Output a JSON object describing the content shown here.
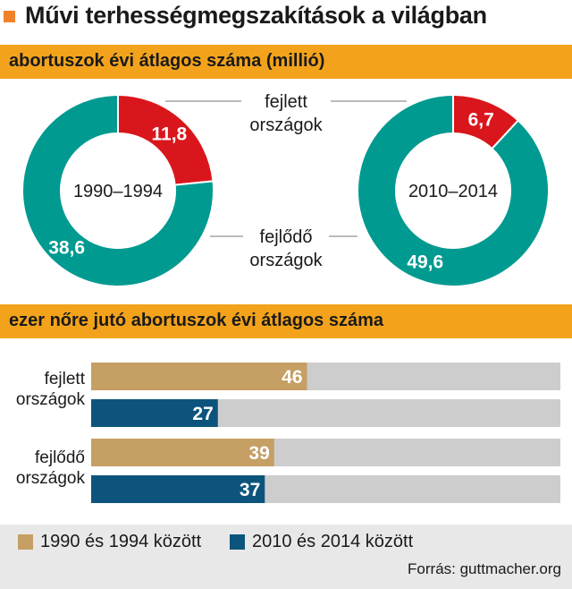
{
  "title": "Művi terhességmegszakítások a világban",
  "section1": {
    "title": "abortuszok  évi átlagos száma (millió)"
  },
  "section2": {
    "title": "ezer nőre jutó abortuszok évi átlagos száma"
  },
  "colors": {
    "accent": "#f0822a",
    "band": "#f3a31b",
    "developed": "#d9161c",
    "developing": "#009a90",
    "period1": "#c59f64",
    "period2": "#0d547c",
    "bar_bg": "#cdcdcd"
  },
  "chart_data": [
    {
      "type": "pie",
      "center_label": "1990–1994",
      "slices": [
        {
          "label": "fejlett országok",
          "value": 11.8,
          "display": "11,8"
        },
        {
          "label": "fejlődő országok",
          "value": 38.6,
          "display": "38,6"
        }
      ]
    },
    {
      "type": "pie",
      "center_label": "2010–2014",
      "slices": [
        {
          "label": "fejlett országok",
          "value": 6.7,
          "display": "6,7"
        },
        {
          "label": "fejlődő országok",
          "value": 49.6,
          "display": "49,6"
        }
      ]
    },
    {
      "type": "bar",
      "orientation": "horizontal",
      "categories": [
        "fejlett országok",
        "fejlődő országok"
      ],
      "series": [
        {
          "name": "1990 és 1994 között",
          "values": [
            46,
            39
          ]
        },
        {
          "name": "2010 és 2014 között",
          "values": [
            27,
            37
          ]
        }
      ],
      "xlim": [
        0,
        100
      ]
    }
  ],
  "donut_labels": {
    "developed": [
      "fejlett",
      "országok"
    ],
    "developing": [
      "fejlődő",
      "országok"
    ]
  },
  "bar_labels": {
    "developed": [
      "fejlett",
      "országok"
    ],
    "developing": [
      "fejlődő",
      "országok"
    ]
  },
  "legend": [
    {
      "label": "1990 és 1994 között"
    },
    {
      "label": "2010 és 2014 között"
    }
  ],
  "source": "Forrás: guttmacher.org"
}
